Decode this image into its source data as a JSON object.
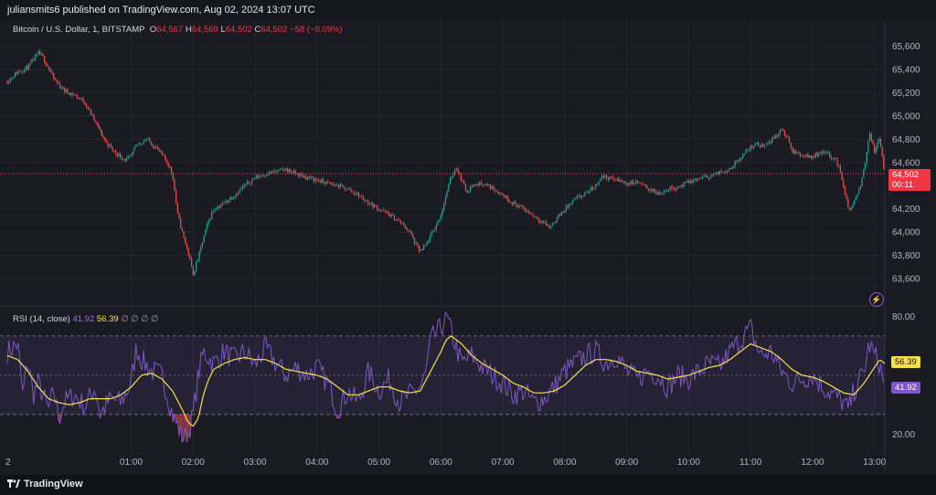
{
  "header": {
    "publisher": "juliansmits6 published on TradingView.com, Aug 02, 2024 13:07 UTC"
  },
  "legend": {
    "symbol": "Bitcoin / U.S. Dollar, 1, BITSTAMP",
    "o_label": "O",
    "o_value": "64,567",
    "h_label": "H",
    "h_value": "64,569",
    "l_label": "L",
    "l_value": "64,502",
    "c_label": "C",
    "c_value": "64,502",
    "change": "−58 (−0.09%)"
  },
  "price_tag": {
    "price": "64,502",
    "countdown": "00:11"
  },
  "rsi_legend": {
    "name": "RSI (14, close)",
    "rsi_value": "41.92",
    "ma_value": "56.39",
    "placeholders": "∅ ∅ ∅ ∅"
  },
  "rsi_tags": {
    "rsi": "41.92",
    "ma": "56.39"
  },
  "footer": {
    "brand": "TradingView"
  },
  "colors": {
    "up": "#26a69a",
    "down": "#ef5350",
    "rsi": "#7e57c2",
    "rsi_ma": "#f5e04a",
    "background": "#1a1b22"
  },
  "icons": {
    "alert": "lightning-icon",
    "brand": "tradingview-logo-icon"
  },
  "chart_data": [
    {
      "type": "candlestick",
      "x_tick_labels": [
        "2",
        "01:00",
        "02:00",
        "03:00",
        "04:00",
        "05:00",
        "06:00",
        "07:00",
        "08:00",
        "09:00",
        "10:00",
        "11:00",
        "12:00",
        "13:00"
      ],
      "y_tick_labels": [
        "63,600",
        "63,800",
        "64,000",
        "64,200",
        "64,400",
        "64,600",
        "64,800",
        "65,000",
        "65,200",
        "65,400",
        "65,600"
      ],
      "ylim": [
        63450,
        65700
      ],
      "x_range_minutes": [
        -60,
        790
      ],
      "current_price": 64502,
      "path": [
        [
          -60,
          65300
        ],
        [
          -50,
          65380
        ],
        [
          -40,
          65420
        ],
        [
          -30,
          65540
        ],
        [
          -25,
          65500
        ],
        [
          -15,
          65320
        ],
        [
          -5,
          65220
        ],
        [
          5,
          65180
        ],
        [
          15,
          65120
        ],
        [
          25,
          64950
        ],
        [
          35,
          64780
        ],
        [
          45,
          64680
        ],
        [
          55,
          64620
        ],
        [
          60,
          64650
        ],
        [
          65,
          64750
        ],
        [
          75,
          64800
        ],
        [
          85,
          64720
        ],
        [
          95,
          64600
        ],
        [
          100,
          64500
        ],
        [
          105,
          64150
        ],
        [
          110,
          63980
        ],
        [
          115,
          63830
        ],
        [
          120,
          63640
        ],
        [
          125,
          63780
        ],
        [
          130,
          63950
        ],
        [
          135,
          64100
        ],
        [
          140,
          64200
        ],
        [
          150,
          64250
        ],
        [
          160,
          64320
        ],
        [
          170,
          64400
        ],
        [
          180,
          64470
        ],
        [
          190,
          64500
        ],
        [
          200,
          64520
        ],
        [
          210,
          64540
        ],
        [
          220,
          64500
        ],
        [
          230,
          64470
        ],
        [
          240,
          64450
        ],
        [
          250,
          64420
        ],
        [
          260,
          64400
        ],
        [
          270,
          64370
        ],
        [
          280,
          64320
        ],
        [
          290,
          64250
        ],
        [
          300,
          64200
        ],
        [
          310,
          64150
        ],
        [
          320,
          64090
        ],
        [
          330,
          64000
        ],
        [
          335,
          63900
        ],
        [
          340,
          63830
        ],
        [
          345,
          63880
        ],
        [
          355,
          64050
        ],
        [
          360,
          64150
        ],
        [
          365,
          64320
        ],
        [
          370,
          64480
        ],
        [
          375,
          64560
        ],
        [
          380,
          64450
        ],
        [
          385,
          64350
        ],
        [
          390,
          64400
        ],
        [
          400,
          64420
        ],
        [
          410,
          64380
        ],
        [
          420,
          64320
        ],
        [
          430,
          64250
        ],
        [
          440,
          64200
        ],
        [
          450,
          64140
        ],
        [
          460,
          64080
        ],
        [
          465,
          64040
        ],
        [
          470,
          64090
        ],
        [
          480,
          64200
        ],
        [
          490,
          64280
        ],
        [
          500,
          64330
        ],
        [
          510,
          64400
        ],
        [
          515,
          64480
        ],
        [
          520,
          64470
        ],
        [
          530,
          64450
        ],
        [
          540,
          64420
        ],
        [
          550,
          64430
        ],
        [
          560,
          64380
        ],
        [
          570,
          64330
        ],
        [
          580,
          64370
        ],
        [
          590,
          64390
        ],
        [
          600,
          64430
        ],
        [
          610,
          64460
        ],
        [
          620,
          64480
        ],
        [
          630,
          64510
        ],
        [
          640,
          64550
        ],
        [
          650,
          64640
        ],
        [
          660,
          64730
        ],
        [
          665,
          64760
        ],
        [
          670,
          64740
        ],
        [
          680,
          64790
        ],
        [
          690,
          64880
        ],
        [
          695,
          64820
        ],
        [
          700,
          64700
        ],
        [
          710,
          64660
        ],
        [
          720,
          64650
        ],
        [
          730,
          64700
        ],
        [
          740,
          64640
        ],
        [
          745,
          64580
        ],
        [
          750,
          64400
        ],
        [
          755,
          64180
        ],
        [
          760,
          64250
        ],
        [
          765,
          64350
        ],
        [
          770,
          64550
        ],
        [
          775,
          64850
        ],
        [
          780,
          64700
        ],
        [
          785,
          64800
        ],
        [
          790,
          64502
        ]
      ]
    },
    {
      "type": "line",
      "name": "RSI (14, close)",
      "y_tick_labels": [
        "20.00",
        "80.00"
      ],
      "ylim": [
        15,
        83
      ],
      "bands": [
        30,
        50,
        70
      ],
      "rsi_path": [
        [
          -60,
          62
        ],
        [
          -50,
          66
        ],
        [
          -45,
          40
        ],
        [
          -40,
          58
        ],
        [
          -35,
          40
        ],
        [
          -30,
          46
        ],
        [
          -20,
          32
        ],
        [
          -15,
          42
        ],
        [
          -10,
          28
        ],
        [
          -5,
          36
        ],
        [
          5,
          40
        ],
        [
          15,
          34
        ],
        [
          25,
          44
        ],
        [
          30,
          30
        ],
        [
          40,
          38
        ],
        [
          50,
          36
        ],
        [
          60,
          46
        ],
        [
          65,
          64
        ],
        [
          70,
          58
        ],
        [
          80,
          52
        ],
        [
          90,
          50
        ],
        [
          95,
          40
        ],
        [
          100,
          30
        ],
        [
          110,
          18
        ],
        [
          115,
          20
        ],
        [
          120,
          30
        ],
        [
          125,
          50
        ],
        [
          130,
          62
        ],
        [
          140,
          56
        ],
        [
          150,
          62
        ],
        [
          160,
          58
        ],
        [
          170,
          62
        ],
        [
          180,
          55
        ],
        [
          190,
          64
        ],
        [
          200,
          56
        ],
        [
          210,
          50
        ],
        [
          220,
          54
        ],
        [
          230,
          50
        ],
        [
          240,
          54
        ],
        [
          250,
          46
        ],
        [
          255,
          40
        ],
        [
          260,
          32
        ],
        [
          270,
          42
        ],
        [
          280,
          36
        ],
        [
          290,
          52
        ],
        [
          300,
          42
        ],
        [
          310,
          48
        ],
        [
          320,
          36
        ],
        [
          330,
          40
        ],
        [
          340,
          44
        ],
        [
          345,
          50
        ],
        [
          350,
          68
        ],
        [
          360,
          74
        ],
        [
          365,
          80
        ],
        [
          370,
          72
        ],
        [
          380,
          56
        ],
        [
          390,
          60
        ],
        [
          400,
          54
        ],
        [
          410,
          50
        ],
        [
          420,
          46
        ],
        [
          430,
          40
        ],
        [
          440,
          42
        ],
        [
          450,
          36
        ],
        [
          460,
          38
        ],
        [
          470,
          44
        ],
        [
          480,
          52
        ],
        [
          490,
          56
        ],
        [
          500,
          60
        ],
        [
          510,
          62
        ],
        [
          520,
          56
        ],
        [
          530,
          60
        ],
        [
          540,
          52
        ],
        [
          550,
          48
        ],
        [
          560,
          52
        ],
        [
          570,
          50
        ],
        [
          580,
          44
        ],
        [
          590,
          50
        ],
        [
          600,
          48
        ],
        [
          610,
          52
        ],
        [
          620,
          56
        ],
        [
          630,
          54
        ],
        [
          640,
          62
        ],
        [
          650,
          68
        ],
        [
          660,
          74
        ],
        [
          665,
          66
        ],
        [
          670,
          60
        ],
        [
          680,
          62
        ],
        [
          690,
          52
        ],
        [
          700,
          46
        ],
        [
          710,
          48
        ],
        [
          720,
          50
        ],
        [
          730,
          44
        ],
        [
          740,
          40
        ],
        [
          750,
          36
        ],
        [
          755,
          32
        ],
        [
          760,
          42
        ],
        [
          770,
          52
        ],
        [
          775,
          66
        ],
        [
          780,
          60
        ],
        [
          785,
          56
        ],
        [
          790,
          42
        ]
      ],
      "ma_path": [
        [
          -60,
          60
        ],
        [
          -50,
          58
        ],
        [
          -40,
          52
        ],
        [
          -30,
          44
        ],
        [
          -20,
          38
        ],
        [
          -10,
          36
        ],
        [
          0,
          35
        ],
        [
          10,
          36
        ],
        [
          20,
          38
        ],
        [
          30,
          38
        ],
        [
          40,
          38
        ],
        [
          50,
          40
        ],
        [
          60,
          44
        ],
        [
          70,
          50
        ],
        [
          80,
          51
        ],
        [
          90,
          48
        ],
        [
          100,
          42
        ],
        [
          110,
          32
        ],
        [
          115,
          26
        ],
        [
          120,
          24
        ],
        [
          125,
          28
        ],
        [
          130,
          40
        ],
        [
          135,
          48
        ],
        [
          140,
          53
        ],
        [
          150,
          56
        ],
        [
          160,
          58
        ],
        [
          170,
          59
        ],
        [
          180,
          58
        ],
        [
          190,
          58
        ],
        [
          200,
          56
        ],
        [
          210,
          53
        ],
        [
          220,
          52
        ],
        [
          230,
          51
        ],
        [
          240,
          50
        ],
        [
          250,
          48
        ],
        [
          260,
          44
        ],
        [
          270,
          40
        ],
        [
          280,
          40
        ],
        [
          290,
          42
        ],
        [
          300,
          44
        ],
        [
          310,
          44
        ],
        [
          320,
          42
        ],
        [
          330,
          41
        ],
        [
          340,
          42
        ],
        [
          350,
          52
        ],
        [
          360,
          62
        ],
        [
          365,
          68
        ],
        [
          370,
          70
        ],
        [
          380,
          66
        ],
        [
          390,
          60
        ],
        [
          400,
          56
        ],
        [
          410,
          53
        ],
        [
          420,
          50
        ],
        [
          430,
          46
        ],
        [
          440,
          44
        ],
        [
          450,
          41
        ],
        [
          460,
          41
        ],
        [
          470,
          42
        ],
        [
          480,
          45
        ],
        [
          490,
          50
        ],
        [
          500,
          55
        ],
        [
          510,
          58
        ],
        [
          520,
          58
        ],
        [
          530,
          57
        ],
        [
          540,
          55
        ],
        [
          550,
          52
        ],
        [
          560,
          51
        ],
        [
          570,
          50
        ],
        [
          580,
          48
        ],
        [
          590,
          49
        ],
        [
          600,
          50
        ],
        [
          610,
          52
        ],
        [
          620,
          54
        ],
        [
          630,
          55
        ],
        [
          640,
          58
        ],
        [
          650,
          62
        ],
        [
          660,
          66
        ],
        [
          670,
          64
        ],
        [
          680,
          62
        ],
        [
          690,
          58
        ],
        [
          700,
          53
        ],
        [
          710,
          50
        ],
        [
          720,
          49
        ],
        [
          730,
          47
        ],
        [
          740,
          44
        ],
        [
          750,
          41
        ],
        [
          760,
          40
        ],
        [
          770,
          46
        ],
        [
          780,
          54
        ],
        [
          785,
          58
        ],
        [
          790,
          56
        ]
      ]
    }
  ]
}
